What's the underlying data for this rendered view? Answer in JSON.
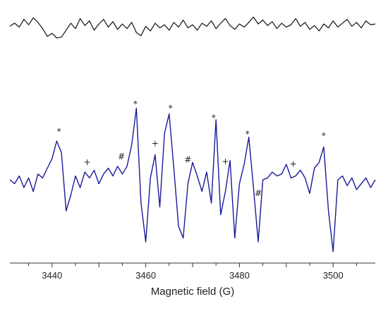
{
  "chart_data": {
    "type": "line",
    "xlabel": "Magnetic field (G)",
    "ylabel": "",
    "xlim": [
      3431,
      3509
    ],
    "x_ticks": [
      3440,
      3460,
      3480,
      3500
    ],
    "x_tick_labels": [
      "3440",
      "3460",
      "3480",
      "3500"
    ],
    "y_axis_visible": false,
    "grid": false,
    "series": [
      {
        "color": "#111111",
        "x": [
          3431,
          3432,
          3433,
          3434,
          3435,
          3436,
          3437,
          3438,
          3439,
          3440,
          3441,
          3442,
          3443,
          3444,
          3445,
          3446,
          3447,
          3448,
          3449,
          3450,
          3451,
          3452,
          3453,
          3454,
          3455,
          3456,
          3457,
          3458,
          3459,
          3460,
          3461,
          3462,
          3463,
          3464,
          3465,
          3466,
          3467,
          3468,
          3469,
          3470,
          3471,
          3472,
          3473,
          3474,
          3475,
          3476,
          3477,
          3478,
          3479,
          3480,
          3481,
          3482,
          3483,
          3484,
          3485,
          3486,
          3487,
          3488,
          3489,
          3490,
          3491,
          3492,
          3493,
          3494,
          3495,
          3496,
          3497,
          3498,
          3499,
          3500,
          3501,
          3502,
          3503,
          3504,
          3505,
          3506,
          3507,
          3508,
          3509
        ],
        "y": [
          0.35,
          0.55,
          0.3,
          0.8,
          0.45,
          0.9,
          0.6,
          0.2,
          -0.3,
          -0.1,
          -0.4,
          -0.35,
          0.1,
          0.55,
          0.2,
          0.85,
          0.4,
          0.7,
          0.1,
          0.5,
          0.8,
          0.3,
          0.65,
          0.15,
          0.5,
          0.2,
          0.6,
          -0.05,
          -0.25,
          0.35,
          0.05,
          0.55,
          0.25,
          0.45,
          0.1,
          0.6,
          0.3,
          0.75,
          0.25,
          0.45,
          0.1,
          0.55,
          0.35,
          0.7,
          0.2,
          0.55,
          0.85,
          0.4,
          0.15,
          0.5,
          0.3,
          0.6,
          0.95,
          0.5,
          0.75,
          0.4,
          0.65,
          0.2,
          0.55,
          0.3,
          0.45,
          0.85,
          0.35,
          0.6,
          0.15,
          0.4,
          0.05,
          0.5,
          0.25,
          0.7,
          0.3,
          0.55,
          0.8,
          0.35,
          0.6,
          0.25,
          0.7,
          0.45,
          0.5
        ]
      },
      {
        "color": "#1a1a9a",
        "x": [
          3431,
          3432,
          3433,
          3434,
          3435,
          3436,
          3437,
          3438,
          3439,
          3440,
          3441,
          3442,
          3443,
          3444,
          3445,
          3446,
          3447,
          3448,
          3449,
          3450,
          3451,
          3452,
          3453,
          3454,
          3455,
          3456,
          3457,
          3458,
          3459,
          3460,
          3461,
          3462,
          3463,
          3464,
          3465,
          3466,
          3467,
          3468,
          3469,
          3470,
          3471,
          3472,
          3473,
          3474,
          3475,
          3476,
          3477,
          3478,
          3479,
          3480,
          3481,
          3482,
          3483,
          3484,
          3485,
          3486,
          3487,
          3488,
          3489,
          3490,
          3491,
          3492,
          3493,
          3494,
          3495,
          3496,
          3497,
          3498,
          3499,
          3500,
          3501,
          3502,
          3503,
          3504,
          3505,
          3506,
          3507,
          3508,
          3509
        ],
        "y": [
          0.0,
          -0.1,
          0.1,
          -0.2,
          0.05,
          -0.3,
          0.15,
          0.05,
          0.3,
          0.55,
          1.0,
          0.7,
          -0.8,
          -0.4,
          0.1,
          -0.2,
          0.2,
          0.05,
          0.25,
          -0.1,
          0.15,
          0.3,
          0.1,
          0.35,
          0.15,
          0.35,
          0.9,
          1.85,
          -0.6,
          -1.6,
          0.05,
          0.65,
          -0.7,
          1.2,
          1.7,
          0.3,
          -1.2,
          -1.5,
          -0.1,
          0.45,
          0.1,
          -0.3,
          0.2,
          -0.6,
          1.55,
          -0.9,
          -0.3,
          0.5,
          -1.5,
          -0.1,
          0.4,
          1.1,
          -0.2,
          -1.6,
          0.0,
          0.05,
          0.2,
          0.1,
          0.15,
          0.4,
          0.05,
          0.1,
          0.25,
          0.05,
          -0.35,
          0.3,
          0.45,
          0.85,
          -0.8,
          -1.85,
          0.0,
          0.1,
          -0.15,
          0.05,
          -0.25,
          -0.1,
          0.05,
          -0.2,
          0.0
        ]
      }
    ],
    "annotations": [
      {
        "text": "*",
        "x": 3441.5
      },
      {
        "text": "+",
        "x": 3447.5
      },
      {
        "text": "#",
        "x": 3454.8
      },
      {
        "text": "*",
        "x": 3457.8
      },
      {
        "text": "+",
        "x": 3462.0
      },
      {
        "text": "*",
        "x": 3465.3
      },
      {
        "text": "#",
        "x": 3469.0
      },
      {
        "text": "*",
        "x": 3474.5
      },
      {
        "text": "+",
        "x": 3477.0
      },
      {
        "text": "*",
        "x": 3481.7
      },
      {
        "text": "#",
        "x": 3484.0
      },
      {
        "text": "+",
        "x": 3491.5
      },
      {
        "text": "*",
        "x": 3498.0
      }
    ]
  }
}
